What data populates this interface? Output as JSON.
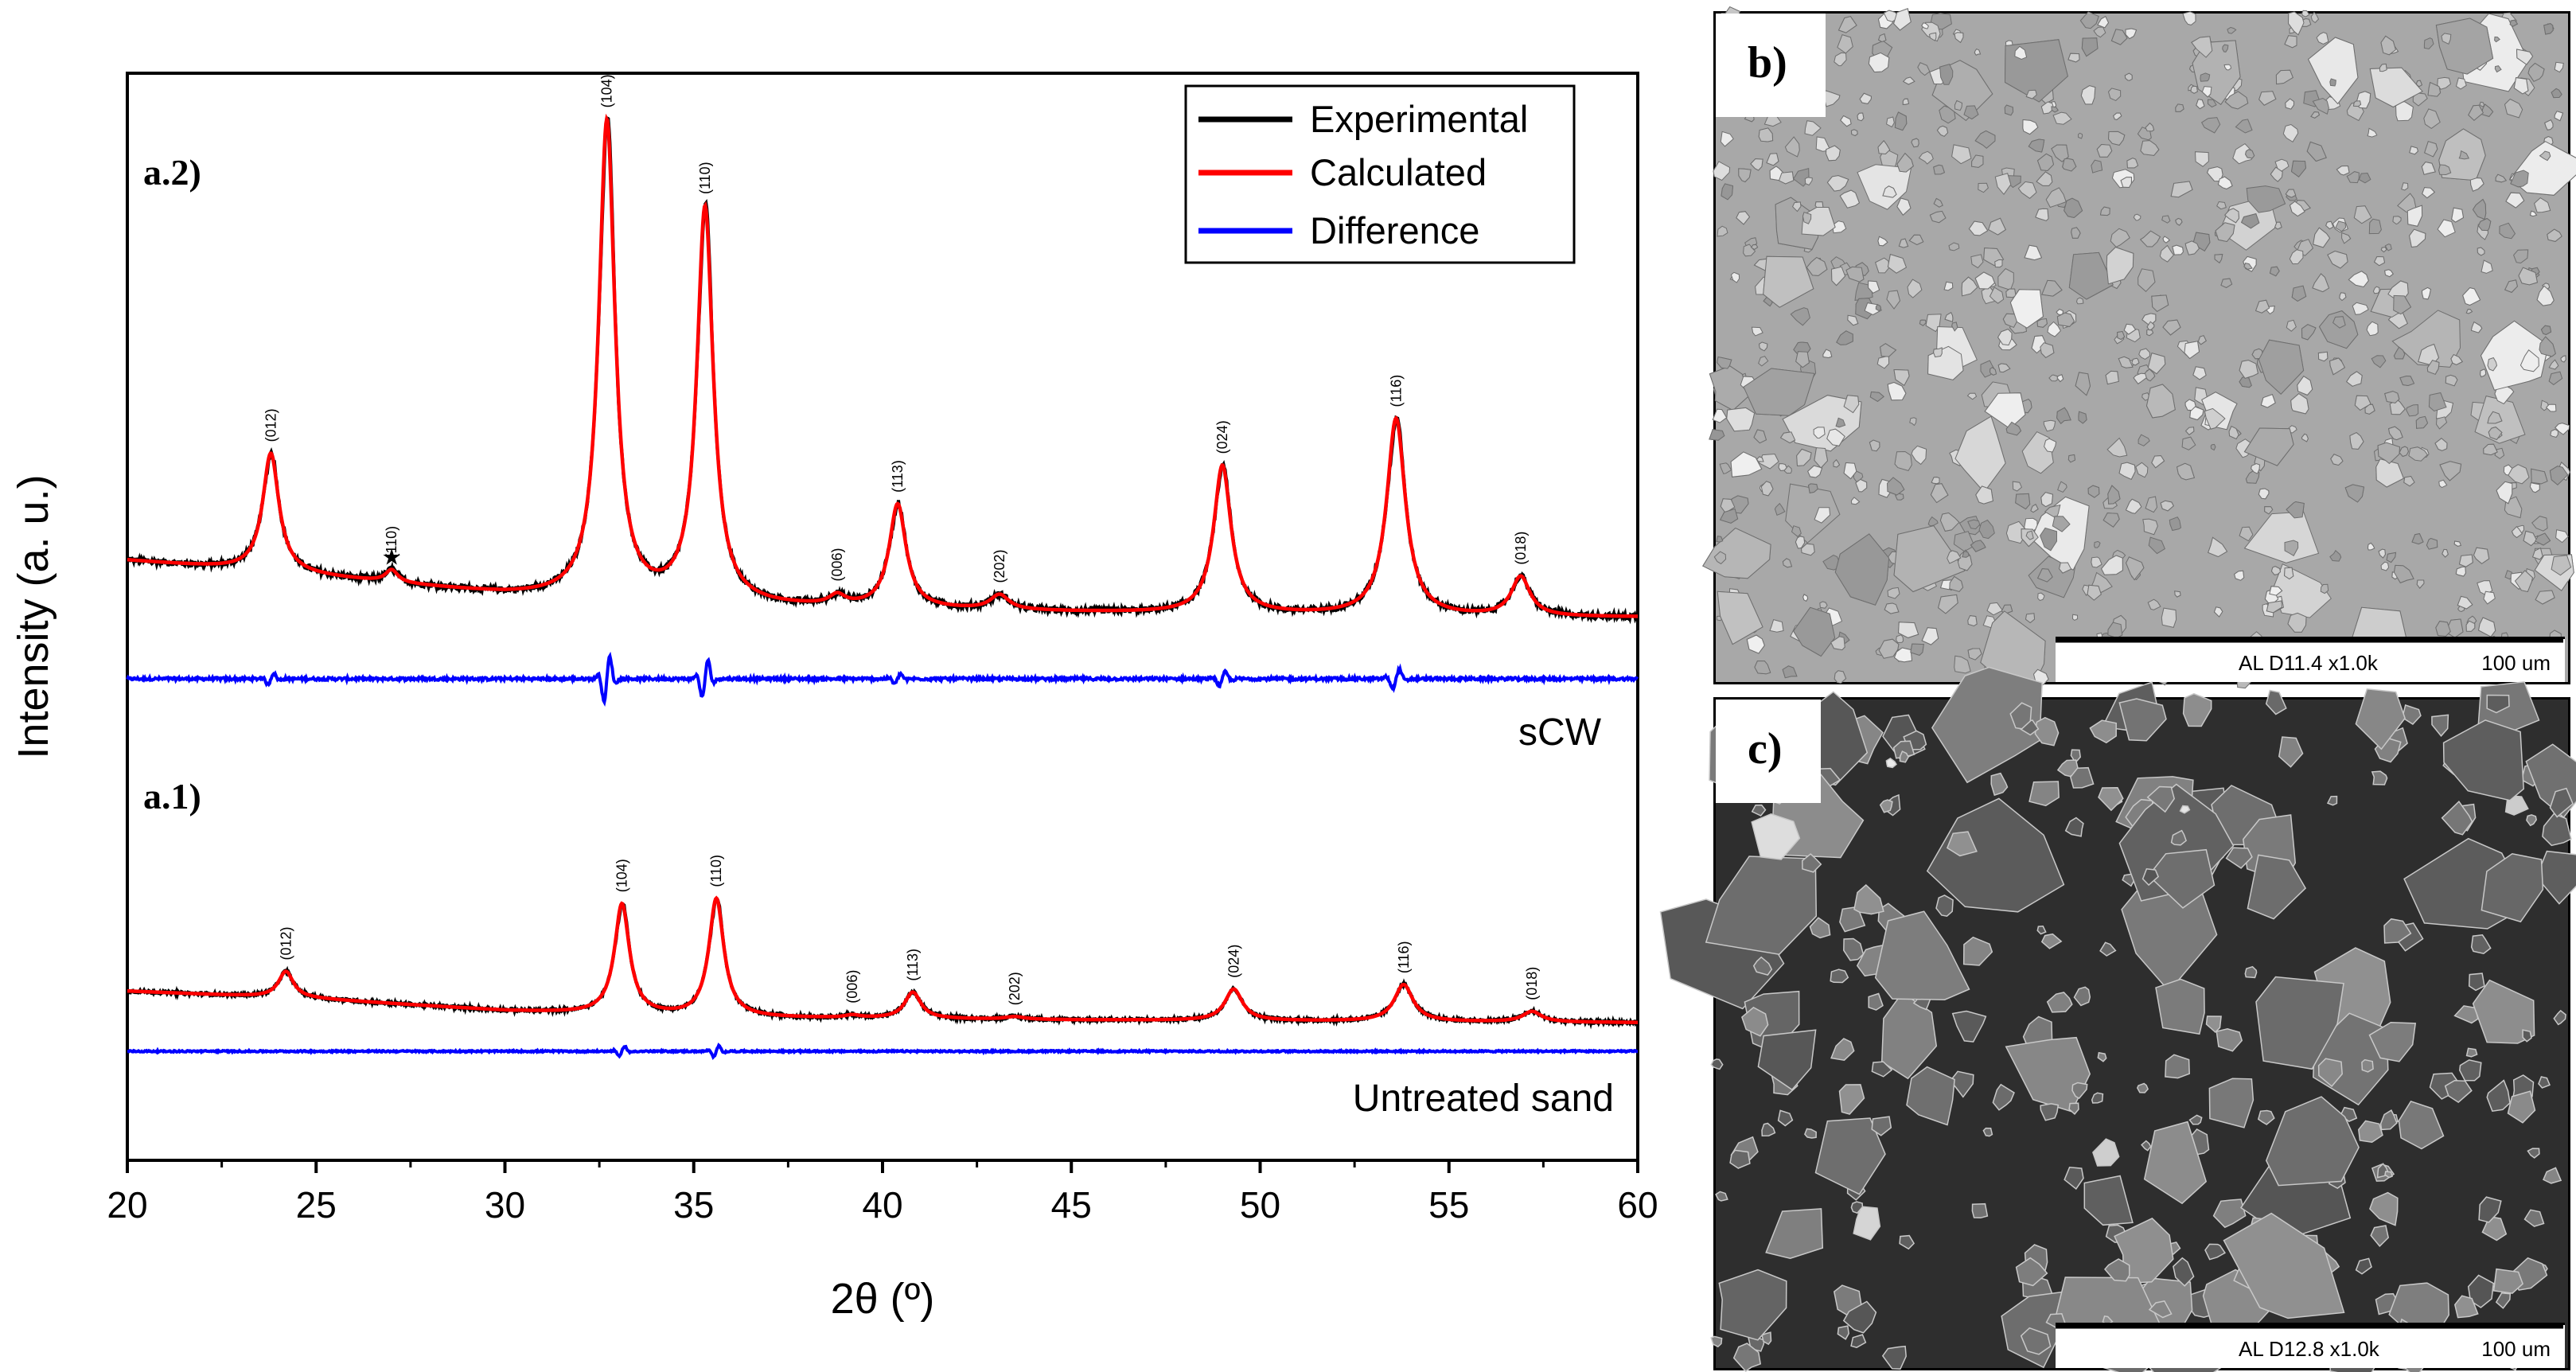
{
  "chart_data": {
    "type": "line",
    "xlabel": "2θ (º)",
    "ylabel": "Intensity (a. u.)",
    "xlim": [
      20,
      60
    ],
    "x_ticks": [
      20,
      25,
      30,
      35,
      40,
      45,
      50,
      55,
      60
    ],
    "legend": {
      "placement": "top-right",
      "entries": [
        "Experimental",
        "Calculated",
        "Difference"
      ]
    },
    "series_colors": {
      "Experimental": "#000000",
      "Calculated": "#ff0000",
      "Difference": "#0000ff"
    },
    "panels": [
      {
        "id": "a.2",
        "tag": "a.2)",
        "sample": "sCW",
        "background": [
          [
            20,
            0.13
          ],
          [
            24,
            0.105
          ],
          [
            30,
            0.06
          ],
          [
            33,
            0.045
          ],
          [
            37,
            0.035
          ],
          [
            45,
            0.025
          ],
          [
            55,
            0.015
          ],
          [
            60,
            0.015
          ]
        ],
        "peaks": [
          {
            "hkl": "(012)",
            "pos": 23.8,
            "height": 0.24,
            "width": 0.26
          },
          {
            "hkl": "(110)",
            "pos": 27.0,
            "height": 0.025,
            "width": 0.2,
            "marker": "★"
          },
          {
            "hkl": "(104)",
            "pos": 32.7,
            "height": 0.97,
            "width": 0.26
          },
          {
            "hkl": "(110)",
            "pos": 35.3,
            "height": 0.8,
            "width": 0.26
          },
          {
            "hkl": "(006)",
            "pos": 38.8,
            "height": 0.02,
            "width": 0.25
          },
          {
            "hkl": "(113)",
            "pos": 40.4,
            "height": 0.21,
            "width": 0.27
          },
          {
            "hkl": "(202)",
            "pos": 43.1,
            "height": 0.03,
            "width": 0.3
          },
          {
            "hkl": "(024)",
            "pos": 49.0,
            "height": 0.3,
            "width": 0.28
          },
          {
            "hkl": "(116)",
            "pos": 53.6,
            "height": 0.4,
            "width": 0.3
          },
          {
            "hkl": "(018)",
            "pos": 56.9,
            "height": 0.08,
            "width": 0.3
          }
        ]
      },
      {
        "id": "a.1",
        "tag": "a.1)",
        "sample": "Untreated sand",
        "background": [
          [
            20,
            0.12
          ],
          [
            25,
            0.09
          ],
          [
            30,
            0.045
          ],
          [
            35,
            0.02
          ],
          [
            45,
            0.01
          ],
          [
            60,
            0.0
          ]
        ],
        "peaks": [
          {
            "hkl": "(012)",
            "pos": 24.2,
            "height": 0.1,
            "width": 0.24
          },
          {
            "hkl": "(104)",
            "pos": 33.1,
            "height": 0.42,
            "width": 0.24
          },
          {
            "hkl": "(110)",
            "pos": 35.6,
            "height": 0.45,
            "width": 0.24
          },
          {
            "hkl": "(006)",
            "pos": 39.2,
            "height": 0.01,
            "width": 0.24
          },
          {
            "hkl": "(113)",
            "pos": 40.8,
            "height": 0.1,
            "width": 0.26
          },
          {
            "hkl": "(202)",
            "pos": 43.5,
            "height": 0.01,
            "width": 0.3
          },
          {
            "hkl": "(024)",
            "pos": 49.3,
            "height": 0.12,
            "width": 0.28
          },
          {
            "hkl": "(116)",
            "pos": 53.8,
            "height": 0.14,
            "width": 0.3
          },
          {
            "hkl": "(018)",
            "pos": 57.2,
            "height": 0.04,
            "width": 0.3
          }
        ]
      }
    ]
  },
  "sem_images": [
    {
      "id": "b",
      "label": "b)",
      "scale_info": "AL   D11.4 x1.0k",
      "scale_length": "100 um",
      "style": "dense"
    },
    {
      "id": "c",
      "label": "c)",
      "scale_info": "AL   D12.8 x1.0k",
      "scale_length": "100 um",
      "style": "sparse"
    }
  ]
}
